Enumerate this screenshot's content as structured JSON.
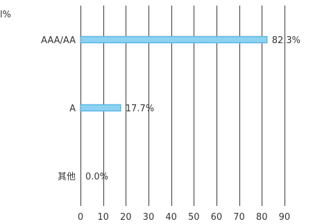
{
  "chart_data": {
    "type": "bar",
    "orientation": "horizontal",
    "unit_label": "l%",
    "categories": [
      "AAA/AA",
      "A",
      "其他"
    ],
    "values": [
      82.3,
      17.7,
      0.0
    ],
    "data_labels": [
      "82.3%",
      "17.7%",
      "0.0%"
    ],
    "xlim": [
      0,
      90
    ],
    "xticks": [
      0,
      10,
      20,
      30,
      40,
      50,
      60,
      70,
      80,
      90
    ],
    "grid": true,
    "colors": {
      "bar_fill": "#8ed2f2",
      "bar_stroke": "#5bb6e3",
      "grid": "#333333",
      "text": "#333333"
    }
  }
}
